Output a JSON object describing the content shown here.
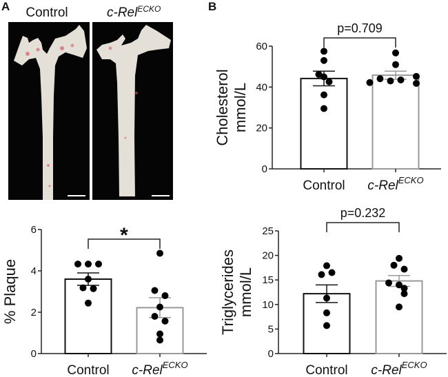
{
  "panel_labels": {
    "a": "A",
    "b": "B"
  },
  "photos": {
    "control_label": "Control",
    "ko_label_main": "c-Rel",
    "ko_label_sup": "ECKO"
  },
  "colors": {
    "control_bar": "#111111",
    "ko_bar": "#999999",
    "dot": "#000000",
    "tissue": "#e6e1da",
    "plaque": "#d9475f"
  },
  "chart_data": [
    {
      "id": "plaque",
      "type": "bar",
      "categories": [
        "Control",
        "c-Rel"
      ],
      "category_sup": [
        "",
        "ECKO"
      ],
      "ylabel": "% Plaque",
      "ylabel_line2": "",
      "ylim": [
        0,
        6
      ],
      "yticks": [
        "0",
        "2",
        "4",
        "6"
      ],
      "means": [
        3.6,
        2.22
      ],
      "sem": [
        0.3,
        0.48
      ],
      "points": [
        [
          4.33,
          4.33,
          4.33,
          3.6,
          3.18,
          3.14,
          2.44
        ],
        [
          4.85,
          3.05,
          2.8,
          2.25,
          1.8,
          1.57,
          0.95,
          0.65
        ]
      ],
      "annotation": "*"
    },
    {
      "id": "cholesterol",
      "type": "bar",
      "categories": [
        "Control",
        "c-Rel"
      ],
      "category_sup": [
        "",
        "ECKO"
      ],
      "ylabel": "Cholesterol",
      "ylabel_line2": "mmol/L",
      "ylim": [
        0,
        60
      ],
      "yticks": [
        "0",
        "20",
        "40",
        "60"
      ],
      "means": [
        44.2,
        45.8
      ],
      "sem": [
        3.6,
        2.0
      ],
      "points": [
        [
          57.5,
          53,
          46.2,
          45,
          42.6,
          36.2,
          29.5
        ],
        [
          56.7,
          51,
          42.2,
          44.1,
          43,
          43.5,
          45.2,
          41.8
        ]
      ],
      "annotation": "p=0.709"
    },
    {
      "id": "triglycerides",
      "type": "bar",
      "categories": [
        "Control",
        "c-Rel"
      ],
      "category_sup": [
        "",
        "ECKO"
      ],
      "ylabel": "Triglycerides",
      "ylabel_line2": "mmol/L",
      "ylim": [
        0,
        25
      ],
      "yticks": [
        "0",
        "5",
        "10",
        "15",
        "20",
        "25"
      ],
      "means": [
        12.2,
        14.8
      ],
      "sem": [
        1.8,
        1.1
      ],
      "points": [
        [
          17.9,
          16.1,
          16.5,
          11.3,
          8.3,
          5.7
        ],
        [
          19.4,
          18,
          17.2,
          14.4,
          14,
          13.3,
          12.2,
          9.5
        ]
      ],
      "annotation": "p=0.232"
    }
  ]
}
